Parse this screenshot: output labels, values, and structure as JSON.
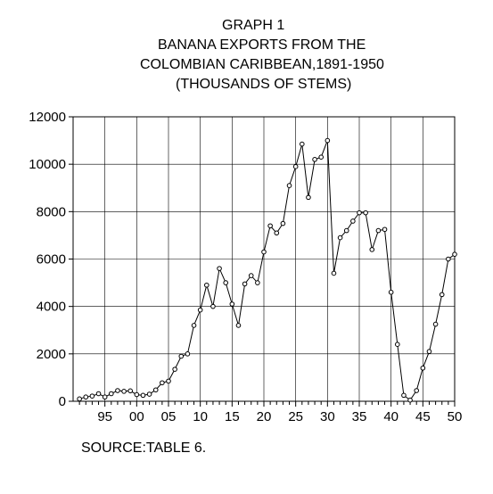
{
  "titles": {
    "line1": "GRAPH 1",
    "line2": "BANANA EXPORTS FROM THE",
    "line3": "COLOMBIAN CARIBBEAN,1891-1950",
    "line4": "(THOUSANDS OF STEMS)"
  },
  "source": "SOURCE:TABLE 6.",
  "chart_data": {
    "type": "line",
    "title": "BANANA EXPORTS FROM THE COLOMBIAN CARIBBEAN,1891-1950",
    "subtitle": "(THOUSANDS OF STEMS)",
    "xlabel": "",
    "ylabel": "",
    "xlim": [
      1890,
      1950
    ],
    "ylim": [
      0,
      12000
    ],
    "grid": true,
    "y_ticks": [
      0,
      2000,
      4000,
      6000,
      8000,
      10000,
      12000
    ],
    "y_tick_labels": [
      "0",
      "2000",
      "4000",
      "6000",
      "8000",
      "10000",
      "12000"
    ],
    "x_ticks": [
      1895,
      1900,
      1905,
      1910,
      1915,
      1920,
      1925,
      1930,
      1935,
      1940,
      1945,
      1950
    ],
    "x_tick_labels": [
      "95",
      "00",
      "05",
      "10",
      "15",
      "20",
      "25",
      "30",
      "35",
      "40",
      "45",
      "50"
    ],
    "x": [
      1891,
      1892,
      1893,
      1894,
      1895,
      1896,
      1897,
      1898,
      1899,
      1900,
      1901,
      1902,
      1903,
      1904,
      1905,
      1906,
      1907,
      1908,
      1909,
      1910,
      1911,
      1912,
      1913,
      1914,
      1915,
      1916,
      1917,
      1918,
      1919,
      1920,
      1921,
      1922,
      1923,
      1924,
      1925,
      1926,
      1927,
      1928,
      1929,
      1930,
      1931,
      1932,
      1933,
      1934,
      1935,
      1936,
      1937,
      1938,
      1939,
      1940,
      1941,
      1942,
      1943,
      1944,
      1945,
      1946,
      1947,
      1948,
      1949,
      1950
    ],
    "values": [
      100,
      180,
      220,
      320,
      180,
      320,
      450,
      420,
      440,
      280,
      250,
      300,
      480,
      780,
      850,
      1350,
      1900,
      2000,
      3200,
      3850,
      4900,
      4000,
      5600,
      5000,
      4100,
      3200,
      4950,
      5300,
      5000,
      6300,
      7400,
      7100,
      7500,
      9100,
      9900,
      10850,
      8600,
      10200,
      10300,
      11000,
      5400,
      6900,
      7200,
      7600,
      7950,
      7950,
      6400,
      7200,
      7250,
      4600,
      2400,
      250,
      50,
      450,
      1400,
      2100,
      3250,
      4500,
      6000,
      6200
    ]
  }
}
